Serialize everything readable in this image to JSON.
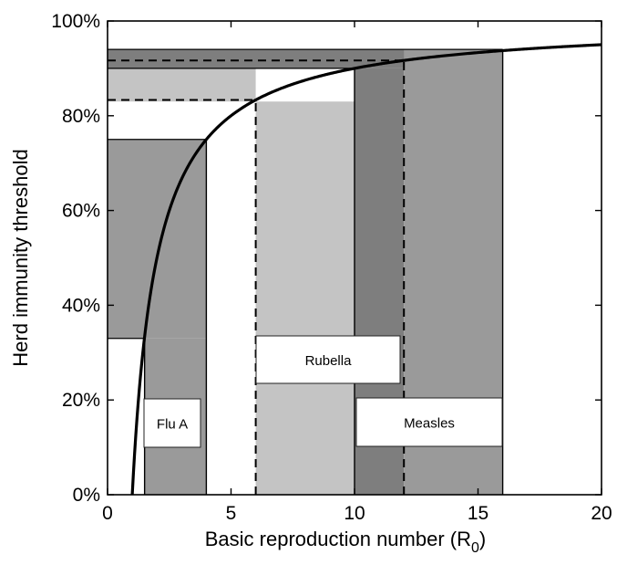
{
  "chart_data": {
    "type": "area",
    "xlabel": "Basic reproduction number (R",
    "xlabel_subscript": "0",
    "xlabel_close": ")",
    "ylabel": "Herd immunity threshold",
    "xlim": [
      0,
      20
    ],
    "ylim": [
      0,
      100
    ],
    "x_ticks": [
      {
        "value": 0,
        "label": "0"
      },
      {
        "value": 5,
        "label": "5"
      },
      {
        "value": 10,
        "label": "10"
      },
      {
        "value": 15,
        "label": "15"
      },
      {
        "value": 20,
        "label": "20"
      }
    ],
    "y_ticks": [
      {
        "value": 0,
        "label": "0%"
      },
      {
        "value": 20,
        "label": "20%"
      },
      {
        "value": 40,
        "label": "40%"
      },
      {
        "value": 60,
        "label": "60%"
      },
      {
        "value": 80,
        "label": "80%"
      },
      {
        "value": 100,
        "label": "100%"
      }
    ],
    "grid": false,
    "curve": {
      "formula": "1 - 1/R0",
      "x_range": [
        1,
        20
      ]
    },
    "diseases": [
      {
        "label": "Flu A",
        "r0_range": [
          1.5,
          4
        ],
        "threshold_range": [
          33,
          75
        ],
        "color": "#9a9a9a",
        "dashed": false
      },
      {
        "label": "Rubella",
        "r0_range": [
          6,
          10
        ],
        "threshold_range": [
          83,
          90
        ],
        "color": "#c4c4c4",
        "dashed": true
      },
      {
        "label": "Measles",
        "r0_range": [
          10,
          16
        ],
        "threshold_range": [
          90,
          94
        ],
        "color": "#7e7e7e",
        "dashed": false
      }
    ],
    "dashed_markers": [
      6,
      12
    ],
    "highlight_band": {
      "x_range": [
        12,
        16
      ],
      "color": "#9a9a9a"
    }
  }
}
